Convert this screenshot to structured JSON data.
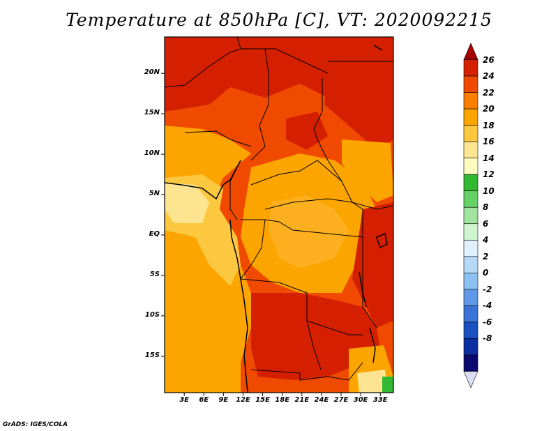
{
  "title": "Temperature at 850hPa [C], VT: 2020092215",
  "credit": "GrADS: IGES/COLA",
  "lat_labels": [
    "20N",
    "15N",
    "10N",
    "5N",
    "EQ",
    "5S",
    "10S",
    "15S"
  ],
  "lon_labels": [
    "3E",
    "6E",
    "9E",
    "12E",
    "15E",
    "18E",
    "21E",
    "24E",
    "27E",
    "30E",
    "33E"
  ],
  "colorbar": {
    "labels": [
      "26",
      "24",
      "22",
      "20",
      "18",
      "16",
      "14",
      "12",
      "10",
      "8",
      "6",
      "4",
      "2",
      "0",
      "-2",
      "-4",
      "-6",
      "-8"
    ],
    "colors": [
      "#a50000",
      "#d42000",
      "#ef4a00",
      "#fc7e00",
      "#fca400",
      "#fcc840",
      "#fce490",
      "#fdfbc0",
      "#33b833",
      "#66d166",
      "#9fe59f",
      "#cff5cf",
      "#e0f0fc",
      "#b6d9f7",
      "#8cc0f0",
      "#5f99e8",
      "#3a73d6",
      "#1a50c0",
      "#0b2ea0",
      "#0a0a6e",
      "#ddddf6"
    ]
  },
  "map": {
    "region": "Central Africa",
    "extent": {
      "lon": [
        0,
        35
      ],
      "lat": [
        -19.5,
        24.5
      ]
    },
    "ocean_color": "#fca400",
    "land_color": "#ef4a00"
  }
}
